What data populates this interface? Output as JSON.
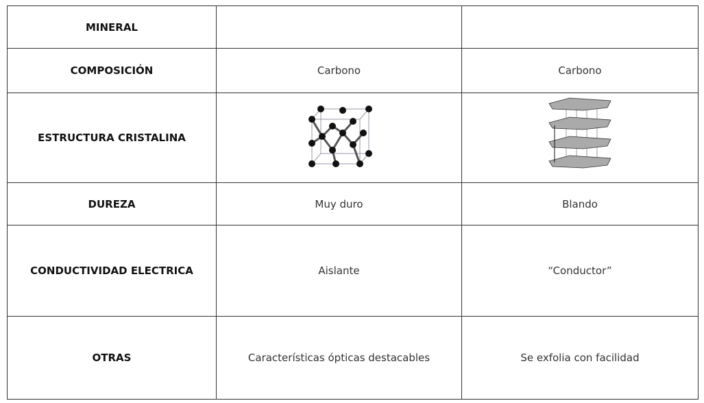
{
  "table": {
    "rows": [
      [
        "MINERAL"
      ],
      [
        "COMPOSICIÓN",
        "Carbono",
        "Carbono"
      ],
      [
        "ESTRUCTURA CRISTALINA"
      ],
      [
        "DUREZA",
        "Muy duro",
        "Blando"
      ],
      [
        "CONDUCTIVIDAD ELECTRICA",
        "Aislante",
        "“Conductor”"
      ],
      [
        "OTRAS",
        "Características ópticas destacables",
        "Se exfolia con facilidad"
      ]
    ]
  }
}
